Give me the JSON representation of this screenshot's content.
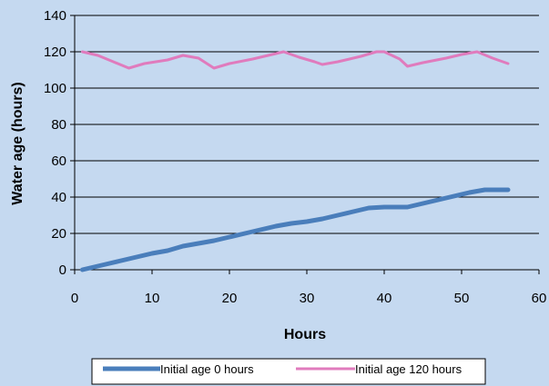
{
  "chart_data": {
    "type": "line",
    "title": "",
    "xlabel": "Hours",
    "ylabel": "Water age (hours)",
    "xlim": [
      0,
      60
    ],
    "ylim": [
      0,
      140
    ],
    "x_ticks": [
      0,
      10,
      20,
      30,
      40,
      50,
      60
    ],
    "y_ticks": [
      0,
      20,
      40,
      60,
      80,
      100,
      120,
      140
    ],
    "grid": "horizontal",
    "legend_position": "bottom",
    "series": [
      {
        "name": "Initial age 0 hours",
        "color": "#4a7ebb",
        "x": [
          1,
          2,
          4,
          6,
          8,
          10,
          12,
          14,
          16,
          18,
          20,
          22,
          24,
          26,
          28,
          30,
          32,
          34,
          36,
          38,
          40,
          41,
          43,
          45,
          47,
          49,
          51,
          53,
          56
        ],
        "y": [
          0,
          1,
          3,
          5,
          7,
          9,
          10.5,
          13,
          14.5,
          16,
          18,
          20,
          22,
          24,
          25.5,
          26.5,
          28,
          30,
          32,
          34,
          34.5,
          34.5,
          34.5,
          36.5,
          38.5,
          40.5,
          42.5,
          44,
          44
        ]
      },
      {
        "name": "Initial age 120 hours",
        "color": "#e07bbd",
        "x": [
          1,
          3,
          5,
          7,
          9,
          12,
          14,
          16,
          18,
          20,
          23,
          25,
          27,
          29,
          31,
          32,
          34,
          37,
          39,
          40,
          42,
          43,
          45,
          48,
          50,
          52,
          54,
          56
        ],
        "y": [
          120,
          118,
          114.5,
          111,
          113.5,
          115.5,
          118,
          116.5,
          111,
          113.5,
          116,
          118,
          120,
          117,
          114.5,
          113,
          114.5,
          117.5,
          120,
          120,
          116,
          112,
          114,
          116.5,
          118.5,
          120,
          116.5,
          113.5
        ]
      }
    ]
  }
}
